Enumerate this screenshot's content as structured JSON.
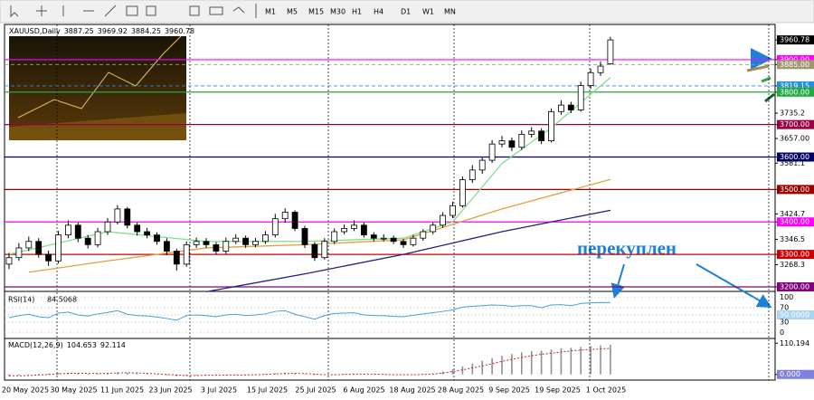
{
  "toolbar": {
    "timeframes": [
      "M1",
      "M5",
      "M15",
      "M30",
      "H1",
      "H4",
      "D1",
      "W1",
      "MN"
    ]
  },
  "chart_data": {
    "type": "candlestick",
    "symbol": "XAUUSD,Daily",
    "open": [
      3270,
      3290,
      3320,
      3340,
      3300,
      3280,
      3360,
      3390,
      3350,
      3330,
      3370,
      3400,
      3440,
      3390,
      3370,
      3360,
      3340,
      3310,
      3270,
      3330,
      3340,
      3330,
      3310,
      3340,
      3350,
      3330,
      3340,
      3360,
      3410,
      3430,
      3380,
      3330,
      3290,
      3340,
      3370,
      3380,
      3390,
      3360,
      3350,
      3350,
      3340,
      3330,
      3350,
      3370,
      3390,
      3420,
      3450,
      3530,
      3560,
      3590,
      3640,
      3650,
      3630,
      3670,
      3680,
      3650,
      3740,
      3760,
      3745,
      3820,
      3860,
      3887.25
    ],
    "high": [
      3305,
      3335,
      3355,
      3350,
      3312,
      3372,
      3405,
      3398,
      3360,
      3382,
      3412,
      3452,
      3446,
      3398,
      3382,
      3368,
      3350,
      3318,
      3340,
      3352,
      3350,
      3338,
      3352,
      3362,
      3358,
      3350,
      3372,
      3425,
      3442,
      3436,
      3388,
      3338,
      3350,
      3380,
      3392,
      3405,
      3398,
      3368,
      3362,
      3358,
      3348,
      3360,
      3378,
      3398,
      3430,
      3462,
      3540,
      3575,
      3600,
      3652,
      3665,
      3660,
      3682,
      3692,
      3688,
      3750,
      3775,
      3770,
      3832,
      3872,
      3895,
      3969.92
    ],
    "low": [
      3255,
      3280,
      3310,
      3290,
      3265,
      3272,
      3350,
      3338,
      3318,
      3322,
      3360,
      3392,
      3380,
      3358,
      3350,
      3330,
      3298,
      3250,
      3262,
      3320,
      3320,
      3300,
      3302,
      3332,
      3320,
      3322,
      3332,
      3352,
      3398,
      3372,
      3320,
      3280,
      3284,
      3332,
      3362,
      3372,
      3352,
      3340,
      3340,
      3332,
      3320,
      3324,
      3342,
      3362,
      3382,
      3412,
      3444,
      3520,
      3548,
      3582,
      3630,
      3618,
      3622,
      3660,
      3640,
      3645,
      3730,
      3735,
      3740,
      3810,
      3850,
      3884.25
    ],
    "close": [
      3290,
      3320,
      3340,
      3300,
      3280,
      3360,
      3390,
      3350,
      3330,
      3370,
      3400,
      3440,
      3390,
      3370,
      3360,
      3340,
      3310,
      3270,
      3330,
      3340,
      3330,
      3310,
      3340,
      3350,
      3330,
      3340,
      3360,
      3410,
      3430,
      3380,
      3330,
      3290,
      3340,
      3370,
      3380,
      3390,
      3360,
      3350,
      3350,
      3340,
      3330,
      3350,
      3370,
      3390,
      3420,
      3450,
      3530,
      3560,
      3590,
      3640,
      3650,
      3630,
      3670,
      3680,
      3650,
      3740,
      3760,
      3745,
      3820,
      3860,
      3880,
      3960.78
    ],
    "ylim": [
      3188.8,
      4008.5
    ],
    "yticks": [
      3960.78,
      {
        "value": 3900,
        "label": "3900.00"
      },
      {
        "value": 3885,
        "label": "3885.00"
      },
      3819.15,
      {
        "value": 3800,
        "label": "3800.00"
      },
      3735.2,
      {
        "value": 3700,
        "label": "3700.00"
      },
      {
        "value": 3657,
        "label": "3657.00"
      },
      {
        "value": 3600,
        "label": "3600.00"
      },
      3581.1,
      {
        "value": 3500,
        "label": "3500.00"
      },
      3424.7,
      {
        "value": 3400,
        "label": "3400.00"
      },
      3346.5,
      {
        "value": 3300,
        "label": "3300.00"
      },
      3268.3,
      {
        "value": 3200,
        "label": "3200.00"
      }
    ],
    "levels": [
      {
        "value": 3900,
        "color": "#ff00ff"
      },
      {
        "value": 3885,
        "color": "#a09870",
        "dash": true
      },
      {
        "value": 3819.15,
        "color": "#2a8fd8",
        "dash": true
      },
      {
        "value": 3800,
        "color": "#22aa44"
      },
      {
        "value": 3700,
        "color": "#990044"
      },
      {
        "value": 3600,
        "color": "#000066"
      },
      {
        "value": 3500,
        "color": "#990000"
      },
      {
        "value": 3400,
        "color": "#ff00ff"
      },
      {
        "value": 3300,
        "color": "#cc0000"
      },
      {
        "value": 3200,
        "color": "#800080"
      }
    ],
    "moving_averages": [
      {
        "color": "#7ee08a",
        "x": [
          0,
          10,
          20,
          30,
          40,
          45,
          50,
          55,
          61
        ],
        "values": [
          3300,
          3370,
          3340,
          3340,
          3350,
          3400,
          3580,
          3690,
          3845
        ]
      },
      {
        "color": "#e0a040",
        "x": [
          2,
          10,
          20,
          30,
          40,
          50,
          61
        ],
        "values": [
          3245,
          3280,
          3320,
          3330,
          3345,
          3440,
          3531
        ]
      },
      {
        "color": "#20207a",
        "x": [
          20,
          30,
          40,
          50,
          61
        ],
        "values": [
          3185,
          3240,
          3300,
          3370,
          3436
        ]
      }
    ],
    "dates": [
      "20 May 2025",
      "30 May 2025",
      "11 Jun 2025",
      "23 Jun 2025",
      "3 Jul 2025",
      "15 Jul 2025",
      "25 Jul 2025",
      "6 Aug 2025",
      "18 Aug 2025",
      "28 Aug 2025",
      "9 Sep 2025",
      "19 Sep 2025",
      "1 Oct 2025"
    ],
    "rsi": {
      "label": "RSI(14)",
      "ylim": [
        -16,
        116
      ],
      "yticks": [
        100,
        70,
        {
          "value": 50,
          "label": "50.0000"
        },
        30,
        0
      ],
      "color": "#4a9fd8",
      "values": [
        42,
        48,
        52,
        45,
        42,
        55,
        58,
        50,
        47,
        53,
        57,
        62,
        52,
        48,
        47,
        44,
        40,
        35,
        48,
        50,
        48,
        45,
        50,
        52,
        48,
        50,
        53,
        60,
        62,
        52,
        45,
        38,
        48,
        54,
        55,
        56,
        50,
        48,
        48,
        46,
        45,
        49,
        53,
        56,
        60,
        64,
        72,
        74,
        76,
        78,
        77,
        74,
        76,
        76,
        70,
        78,
        79,
        76,
        82,
        84,
        85,
        84.5068
      ]
    },
    "macd": {
      "label": "MACD(12,26,9)",
      "ylim": [
        -20,
        127
      ],
      "yticks": [
        110.194,
        {
          "value": 0,
          "label": "0.000"
        }
      ],
      "color": "#909090",
      "signal_color": "#cc2020",
      "values": [
        -6,
        -4,
        -2,
        2,
        3,
        5,
        6,
        4,
        2,
        3,
        5,
        7,
        6,
        4,
        2,
        0,
        -3,
        -6,
        -5,
        -3,
        -2,
        -3,
        -2,
        -1,
        -2,
        -1,
        1,
        4,
        6,
        4,
        1,
        -3,
        -2,
        0,
        1,
        2,
        1,
        0,
        -1,
        -1,
        -2,
        -1,
        1,
        4,
        10,
        18,
        28,
        38,
        48,
        58,
        66,
        72,
        78,
        82,
        84,
        88,
        92,
        94,
        97,
        100,
        103,
        104.653
      ],
      "signal": [
        -5,
        -5,
        -4,
        -2,
        0,
        2,
        4,
        4,
        4,
        3,
        4,
        5,
        6,
        5,
        4,
        2,
        0,
        -2,
        -4,
        -4,
        -3,
        -3,
        -2,
        -2,
        -2,
        -1,
        0,
        2,
        3,
        4,
        3,
        1,
        -1,
        -1,
        0,
        1,
        1,
        1,
        0,
        -1,
        -1,
        -1,
        0,
        1,
        5,
        10,
        16,
        23,
        30,
        38,
        46,
        53,
        60,
        66,
        71,
        75,
        79,
        83,
        86,
        88,
        90,
        92.114
      ]
    },
    "annotation": "перекуплен"
  }
}
